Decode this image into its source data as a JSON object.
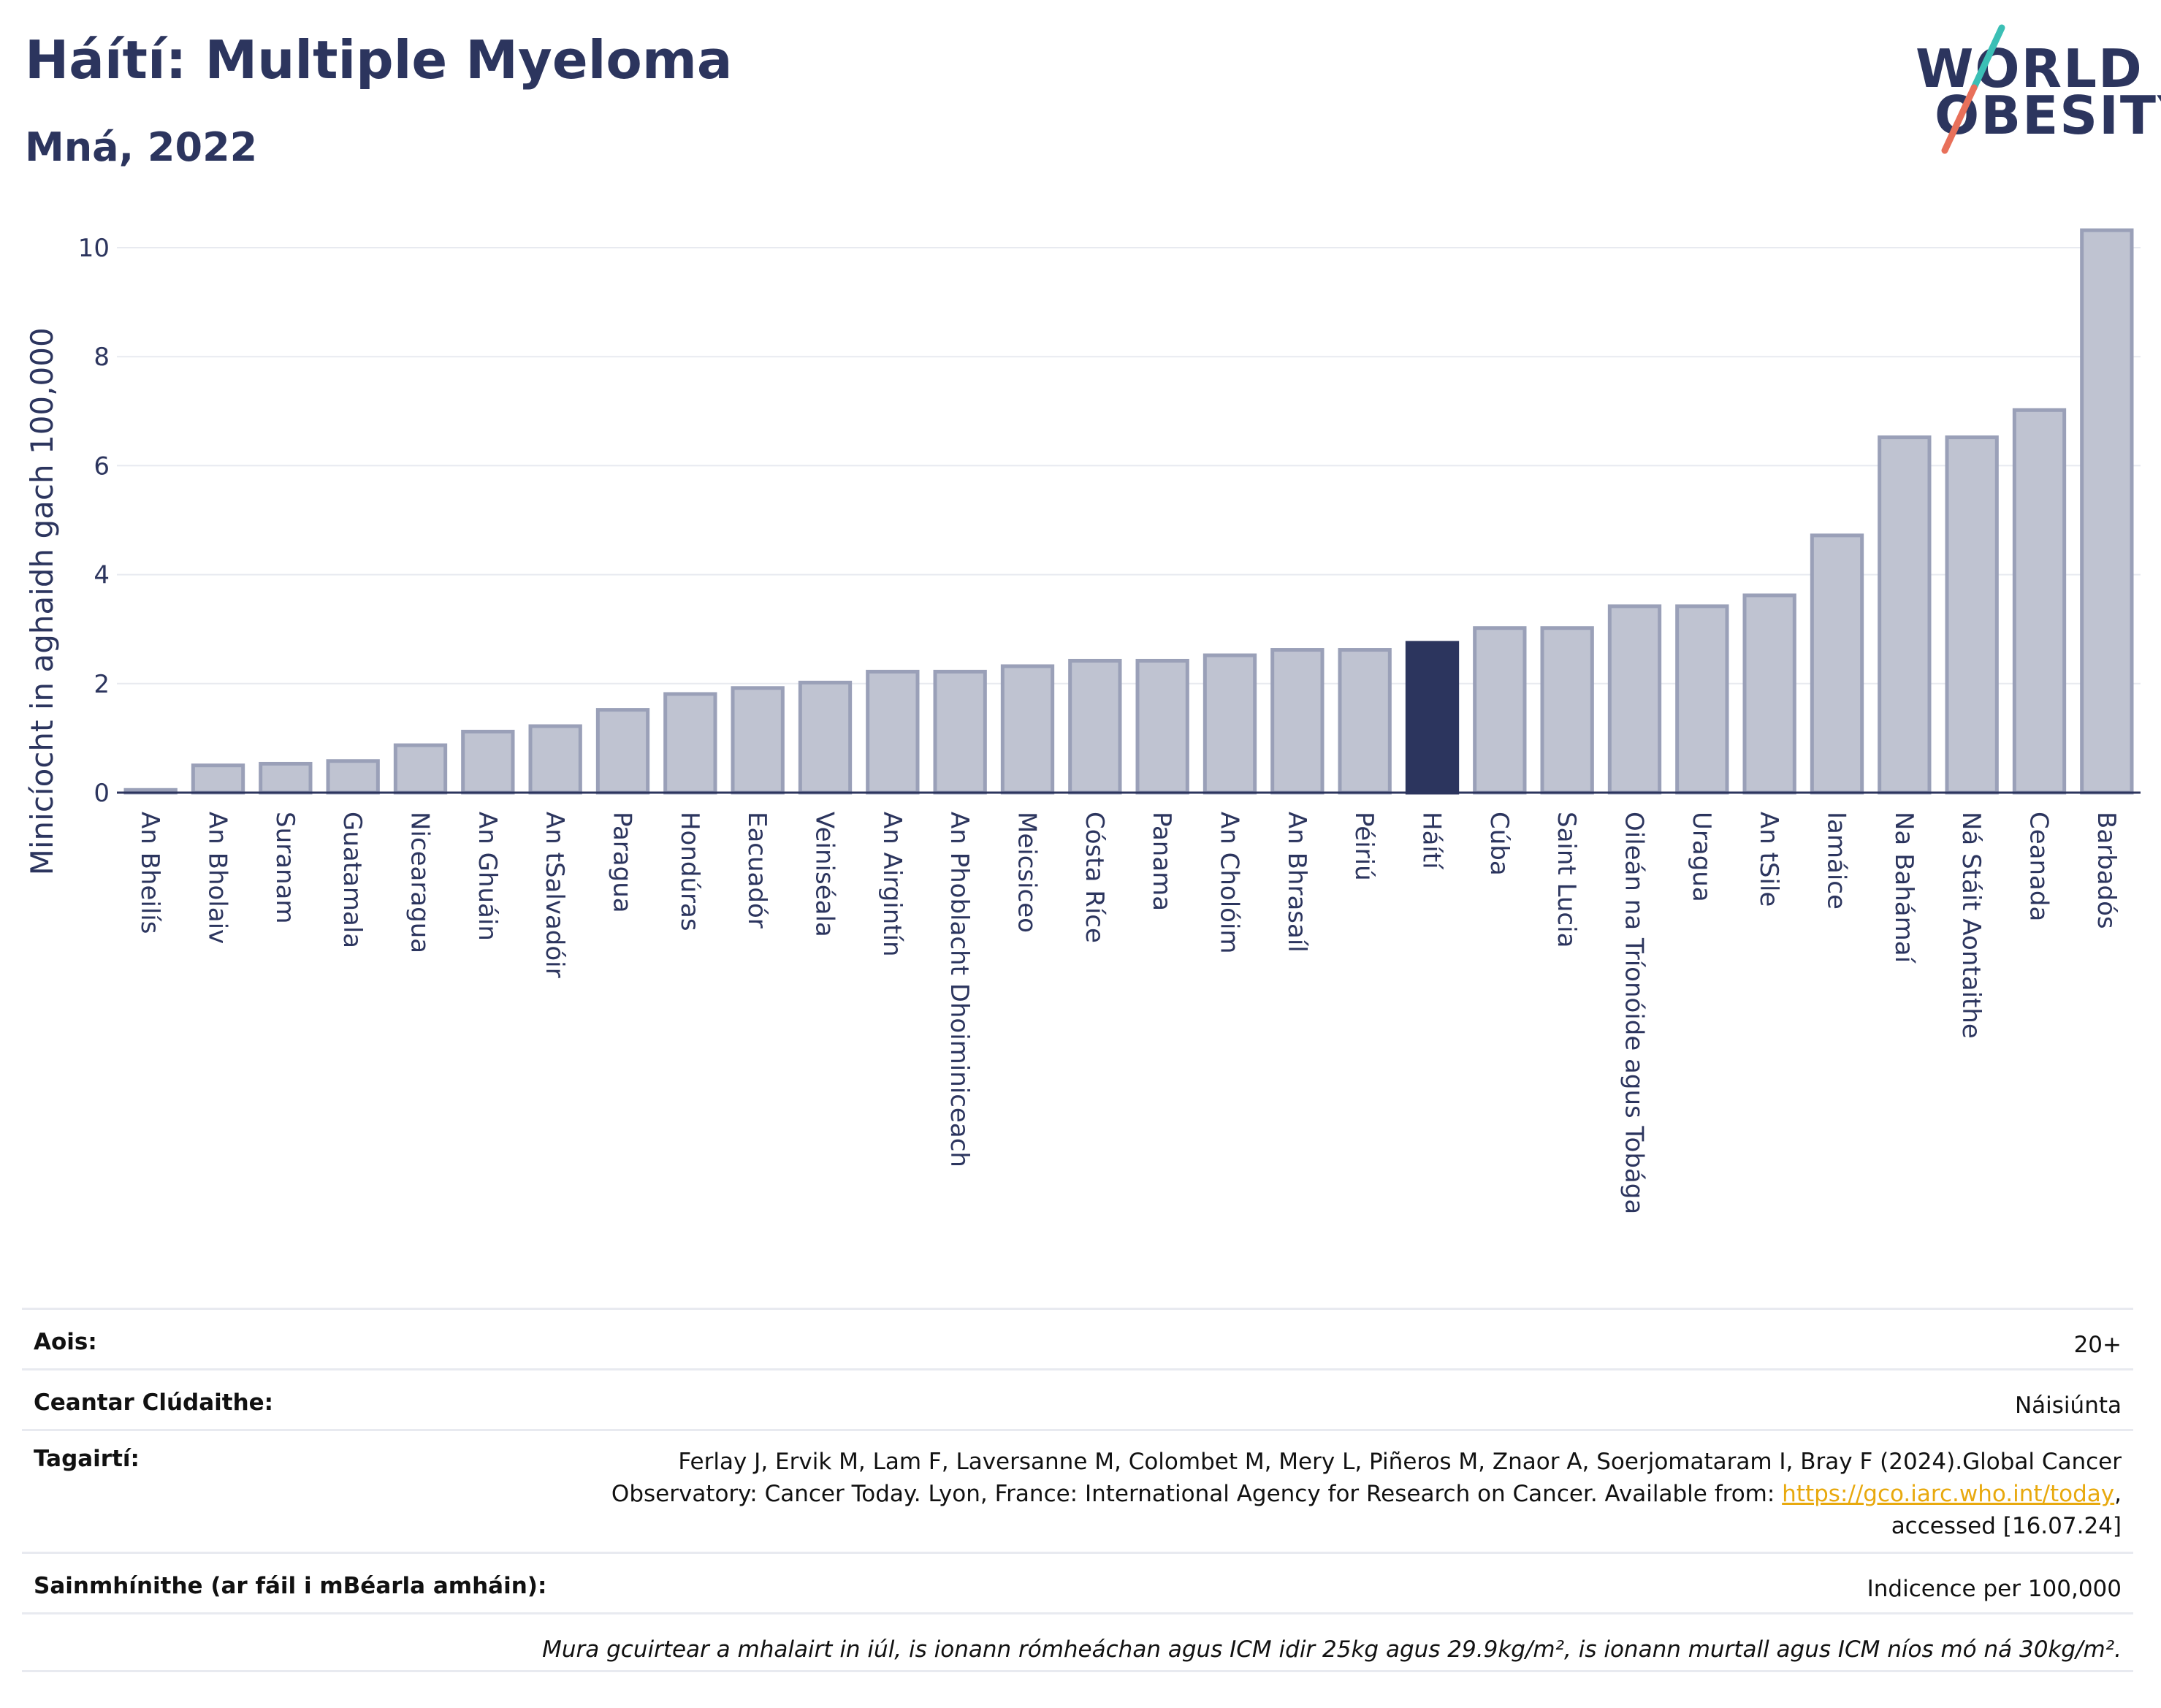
{
  "header": {
    "title": "Háítí: Multiple Myeloma",
    "subtitle": "Mná, 2022"
  },
  "logo": {
    "line1": "WORLD",
    "line2": "OBESITY",
    "colors": {
      "text": "#2c355e",
      "teal": "#3bbfb5",
      "coral": "#e8705a"
    }
  },
  "colors": {
    "bar": "#bfc3d1",
    "bar_border": "#9aa0b8",
    "highlight": "#2c355e",
    "grid": "#e8eaf0",
    "axis": "#2c355e"
  },
  "chart_data": {
    "type": "bar",
    "ylabel": "Minicíocht in aghaidh gach 100,000",
    "xlabel": "",
    "ylim": [
      0,
      10.5
    ],
    "yticks": [
      0,
      2,
      4,
      6,
      8,
      10
    ],
    "grid": true,
    "highlight_category": "Háítí",
    "categories": [
      "An Bheilís",
      "An Bholaiv",
      "Suranam",
      "Guatamala",
      "Nicearagua",
      "An Ghuáin",
      "An tSalvadóir",
      "Paragua",
      "Hondúras",
      "Eacuadór",
      "Veiniséala",
      "An Airgintín",
      "An Phoblacht Dhoiminiceach",
      "Meicsiceo",
      "Cósta Ríce",
      "Panama",
      "An Cholóim",
      "An Bhrasaíl",
      "Péiriú",
      "Háítí",
      "Cúba",
      "Saint Lucia",
      "Oileán na Tríonóide agus Tobága",
      "Uragua",
      "An tSile",
      "Iamáice",
      "Na Bahámaí",
      "Ná Stáit Aontaithe",
      "Ceanada",
      "Barbadós"
    ],
    "values": [
      0.05,
      0.5,
      0.53,
      0.58,
      0.87,
      1.12,
      1.22,
      1.52,
      1.81,
      1.92,
      2.02,
      2.22,
      2.22,
      2.32,
      2.42,
      2.42,
      2.52,
      2.62,
      2.62,
      2.75,
      3.02,
      3.02,
      3.42,
      3.42,
      3.62,
      4.72,
      6.52,
      6.52,
      7.02,
      10.32
    ]
  },
  "info": {
    "age_label": "Aois:",
    "age_value": "20+",
    "coverage_label": "Ceantar Clúdaithe:",
    "coverage_value": "Náisiúnta",
    "references_label": "Tagairtí:",
    "references_line1": "Ferlay J, Ervik M, Lam F, Laversanne M, Colombet M, Mery L, Piñeros M, Znaor A, Soerjomataram I, Bray F (2024).Global Cancer",
    "references_line2_pre": "Observatory: Cancer Today. Lyon, France: International Agency for Research on Cancer. Available from: ",
    "references_link": "https://gco.iarc.who.int/today",
    "references_line2_post": ",",
    "references_line3": "accessed [16.07.24]",
    "definitions_label": "Sainmhínithe (ar fáil i mBéarla amháin):",
    "definitions_value": "Indicence per 100,000",
    "footnote": "Mura gcuirtear a mhalairt in iúl, is ionann rómheáchan agus ICM idir 25kg agus 29.9kg/m², is ionann murtall agus ICM níos mó ná 30kg/m²."
  }
}
